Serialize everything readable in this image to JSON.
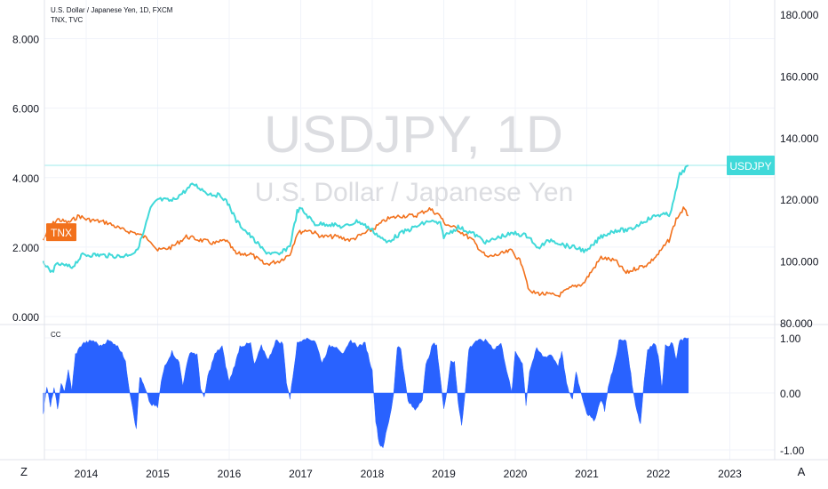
{
  "header": {
    "title": "U.S. Dollar / Japanese Yen, 1D, FXCM",
    "overlay": "TNX, TVC"
  },
  "watermark": {
    "symbol": "USDJPY, 1D",
    "name": "U.S. Dollar / Japanese Yen"
  },
  "colors": {
    "usdjpy": "#40d9d9",
    "tnx": "#f2711c",
    "cc": "#2962ff",
    "grid": "#f0f3fa",
    "axis_text": "#131722"
  },
  "nav": {
    "left": "Z",
    "right": "A"
  },
  "chart_data": [
    {
      "type": "line",
      "title": "",
      "x_ticks": [
        "2014",
        "2015",
        "2016",
        "2017",
        "2018",
        "2019",
        "2020",
        "2021",
        "2022",
        "2023"
      ],
      "left_axis_ticks": [
        "0.000",
        "2.000",
        "4.000",
        "6.000",
        "8.000"
      ],
      "right_axis_ticks": [
        "80.000",
        "100.000",
        "120.000",
        "140.000",
        "160.000",
        "180.000"
      ],
      "left_ylim": [
        0,
        8
      ],
      "right_ylim": [
        80,
        180
      ],
      "series": [
        {
          "name": "USDJPY",
          "axis": "right",
          "last_value_label": "USDJPY",
          "points": [
            [
              2013.4,
              100
            ],
            [
              2013.5,
              96
            ],
            [
              2013.6,
              99
            ],
            [
              2013.8,
              98
            ],
            [
              2013.95,
              102
            ],
            [
              2014.1,
              102
            ],
            [
              2014.3,
              101.8
            ],
            [
              2014.5,
              101.5
            ],
            [
              2014.7,
              103
            ],
            [
              2014.8,
              109
            ],
            [
              2014.9,
              117
            ],
            [
              2015.0,
              120
            ],
            [
              2015.2,
              119.5
            ],
            [
              2015.4,
              123
            ],
            [
              2015.5,
              125
            ],
            [
              2015.7,
              122
            ],
            [
              2015.9,
              121
            ],
            [
              2016.0,
              118
            ],
            [
              2016.1,
              113
            ],
            [
              2016.3,
              108
            ],
            [
              2016.5,
              103
            ],
            [
              2016.7,
              102
            ],
            [
              2016.85,
              105
            ],
            [
              2016.95,
              116
            ],
            [
              2017.0,
              117
            ],
            [
              2017.2,
              112
            ],
            [
              2017.4,
              112
            ],
            [
              2017.6,
              111
            ],
            [
              2017.8,
              113
            ],
            [
              2018.0,
              110
            ],
            [
              2018.2,
              106
            ],
            [
              2018.4,
              109
            ],
            [
              2018.6,
              111
            ],
            [
              2018.8,
              113
            ],
            [
              2018.95,
              112
            ],
            [
              2019.0,
              108
            ],
            [
              2019.2,
              111
            ],
            [
              2019.4,
              109
            ],
            [
              2019.6,
              106
            ],
            [
              2019.8,
              108
            ],
            [
              2020.0,
              109
            ],
            [
              2020.2,
              108
            ],
            [
              2020.3,
              104
            ],
            [
              2020.5,
              107
            ],
            [
              2020.7,
              105
            ],
            [
              2020.9,
              104
            ],
            [
              2021.0,
              103
            ],
            [
              2021.2,
              108
            ],
            [
              2021.4,
              110
            ],
            [
              2021.6,
              110
            ],
            [
              2021.8,
              113
            ],
            [
              2022.0,
              115
            ],
            [
              2022.15,
              115
            ],
            [
              2022.2,
              118
            ],
            [
              2022.3,
              128
            ],
            [
              2022.42,
              131
            ]
          ]
        },
        {
          "name": "TNX",
          "axis": "left",
          "last_value_label": "TNX",
          "points": [
            [
              2013.4,
              2.2
            ],
            [
              2013.5,
              2.6
            ],
            [
              2013.6,
              2.8
            ],
            [
              2013.75,
              2.7
            ],
            [
              2013.9,
              2.9
            ],
            [
              2014.0,
              2.8
            ],
            [
              2014.3,
              2.7
            ],
            [
              2014.5,
              2.5
            ],
            [
              2014.7,
              2.4
            ],
            [
              2014.9,
              2.2
            ],
            [
              2015.0,
              1.9
            ],
            [
              2015.2,
              2.0
            ],
            [
              2015.4,
              2.3
            ],
            [
              2015.6,
              2.2
            ],
            [
              2015.8,
              2.1
            ],
            [
              2015.95,
              2.2
            ],
            [
              2016.1,
              1.8
            ],
            [
              2016.3,
              1.8
            ],
            [
              2016.5,
              1.5
            ],
            [
              2016.7,
              1.6
            ],
            [
              2016.85,
              1.8
            ],
            [
              2016.95,
              2.4
            ],
            [
              2017.1,
              2.5
            ],
            [
              2017.3,
              2.3
            ],
            [
              2017.5,
              2.3
            ],
            [
              2017.7,
              2.2
            ],
            [
              2017.9,
              2.4
            ],
            [
              2018.0,
              2.5
            ],
            [
              2018.2,
              2.8
            ],
            [
              2018.4,
              2.9
            ],
            [
              2018.6,
              2.9
            ],
            [
              2018.8,
              3.1
            ],
            [
              2018.95,
              2.9
            ],
            [
              2019.0,
              2.7
            ],
            [
              2019.2,
              2.5
            ],
            [
              2019.4,
              2.2
            ],
            [
              2019.6,
              1.7
            ],
            [
              2019.8,
              1.8
            ],
            [
              2019.95,
              1.9
            ],
            [
              2020.1,
              1.5
            ],
            [
              2020.2,
              0.7
            ],
            [
              2020.4,
              0.65
            ],
            [
              2020.6,
              0.6
            ],
            [
              2020.8,
              0.85
            ],
            [
              2020.95,
              0.95
            ],
            [
              2021.1,
              1.4
            ],
            [
              2021.2,
              1.7
            ],
            [
              2021.4,
              1.6
            ],
            [
              2021.55,
              1.25
            ],
            [
              2021.7,
              1.4
            ],
            [
              2021.85,
              1.5
            ],
            [
              2022.0,
              1.8
            ],
            [
              2022.15,
              2.2
            ],
            [
              2022.25,
              2.8
            ],
            [
              2022.35,
              3.1
            ],
            [
              2022.42,
              2.9
            ]
          ]
        }
      ]
    },
    {
      "type": "area",
      "title": "CC",
      "y_ticks": [
        "-1.00",
        "0.00",
        "1.00"
      ],
      "ylim": [
        -1,
        1
      ],
      "series": [
        {
          "name": "",
          "points": [
            [
              2013.4,
              -0.35
            ],
            [
              2013.45,
              0.12
            ],
            [
              2013.5,
              -0.25
            ],
            [
              2013.55,
              0.1
            ],
            [
              2013.6,
              -0.28
            ],
            [
              2013.65,
              0.15
            ],
            [
              2013.7,
              0.05
            ],
            [
              2013.75,
              0.4
            ],
            [
              2013.8,
              0.05
            ],
            [
              2013.85,
              0.7
            ],
            [
              2013.95,
              0.9
            ],
            [
              2014.1,
              0.95
            ],
            [
              2014.2,
              0.85
            ],
            [
              2014.3,
              0.95
            ],
            [
              2014.4,
              0.9
            ],
            [
              2014.5,
              0.75
            ],
            [
              2014.55,
              0.55
            ],
            [
              2014.6,
              0.1
            ],
            [
              2014.65,
              -0.25
            ],
            [
              2014.7,
              -0.65
            ],
            [
              2014.75,
              0.3
            ],
            [
              2014.8,
              0.15
            ],
            [
              2014.9,
              -0.2
            ],
            [
              2015.0,
              -0.25
            ],
            [
              2015.05,
              0.2
            ],
            [
              2015.1,
              0.5
            ],
            [
              2015.2,
              0.75
            ],
            [
              2015.3,
              0.55
            ],
            [
              2015.35,
              0.15
            ],
            [
              2015.45,
              0.75
            ],
            [
              2015.55,
              0.7
            ],
            [
              2015.6,
              0.1
            ],
            [
              2015.65,
              -0.1
            ],
            [
              2015.7,
              0.3
            ],
            [
              2015.8,
              0.7
            ],
            [
              2015.9,
              0.85
            ],
            [
              2015.95,
              0.5
            ],
            [
              2016.0,
              0.2
            ],
            [
              2016.1,
              0.6
            ],
            [
              2016.15,
              0.85
            ],
            [
              2016.3,
              0.9
            ],
            [
              2016.35,
              0.5
            ],
            [
              2016.45,
              0.85
            ],
            [
              2016.55,
              0.6
            ],
            [
              2016.65,
              0.95
            ],
            [
              2016.75,
              0.9
            ],
            [
              2016.8,
              0.2
            ],
            [
              2016.85,
              -0.1
            ],
            [
              2016.95,
              0.9
            ],
            [
              2017.05,
              1.0
            ],
            [
              2017.2,
              0.95
            ],
            [
              2017.3,
              0.55
            ],
            [
              2017.4,
              0.85
            ],
            [
              2017.5,
              0.85
            ],
            [
              2017.6,
              0.7
            ],
            [
              2017.7,
              0.95
            ],
            [
              2017.8,
              0.85
            ],
            [
              2017.9,
              0.9
            ],
            [
              2018.0,
              0.4
            ],
            [
              2018.05,
              -0.5
            ],
            [
              2018.1,
              -0.9
            ],
            [
              2018.15,
              -0.95
            ],
            [
              2018.25,
              -0.4
            ],
            [
              2018.3,
              0.0
            ],
            [
              2018.35,
              0.85
            ],
            [
              2018.4,
              0.8
            ],
            [
              2018.45,
              0.3
            ],
            [
              2018.5,
              -0.15
            ],
            [
              2018.6,
              -0.3
            ],
            [
              2018.7,
              -0.1
            ],
            [
              2018.75,
              0.5
            ],
            [
              2018.85,
              0.9
            ],
            [
              2018.9,
              0.85
            ],
            [
              2018.95,
              0.3
            ],
            [
              2019.0,
              -0.3
            ],
            [
              2019.05,
              0.1
            ],
            [
              2019.1,
              0.6
            ],
            [
              2019.15,
              0.55
            ],
            [
              2019.2,
              -0.15
            ],
            [
              2019.25,
              -0.55
            ],
            [
              2019.3,
              0.0
            ],
            [
              2019.35,
              0.8
            ],
            [
              2019.45,
              0.95
            ],
            [
              2019.6,
              0.95
            ],
            [
              2019.7,
              0.8
            ],
            [
              2019.8,
              0.9
            ],
            [
              2019.9,
              0.3
            ],
            [
              2019.95,
              0.0
            ],
            [
              2020.0,
              0.75
            ],
            [
              2020.1,
              0.55
            ],
            [
              2020.15,
              -0.2
            ],
            [
              2020.2,
              0.4
            ],
            [
              2020.3,
              0.8
            ],
            [
              2020.4,
              0.65
            ],
            [
              2020.5,
              0.7
            ],
            [
              2020.6,
              0.5
            ],
            [
              2020.65,
              0.75
            ],
            [
              2020.7,
              0.3
            ],
            [
              2020.75,
              0.0
            ],
            [
              2020.8,
              -0.1
            ],
            [
              2020.85,
              0.4
            ],
            [
              2020.9,
              0.1
            ],
            [
              2021.0,
              -0.35
            ],
            [
              2021.1,
              -0.5
            ],
            [
              2021.2,
              -0.1
            ],
            [
              2021.25,
              -0.3
            ],
            [
              2021.3,
              0.1
            ],
            [
              2021.4,
              0.6
            ],
            [
              2021.45,
              0.95
            ],
            [
              2021.55,
              0.95
            ],
            [
              2021.6,
              0.5
            ],
            [
              2021.65,
              0.0
            ],
            [
              2021.7,
              -0.3
            ],
            [
              2021.75,
              -0.55
            ],
            [
              2021.8,
              0.2
            ],
            [
              2021.85,
              0.8
            ],
            [
              2021.95,
              0.9
            ],
            [
              2022.0,
              0.7
            ],
            [
              2022.05,
              0.1
            ],
            [
              2022.1,
              0.85
            ],
            [
              2022.2,
              0.9
            ],
            [
              2022.25,
              0.6
            ],
            [
              2022.3,
              0.95
            ],
            [
              2022.42,
              1.0
            ]
          ]
        }
      ]
    }
  ]
}
